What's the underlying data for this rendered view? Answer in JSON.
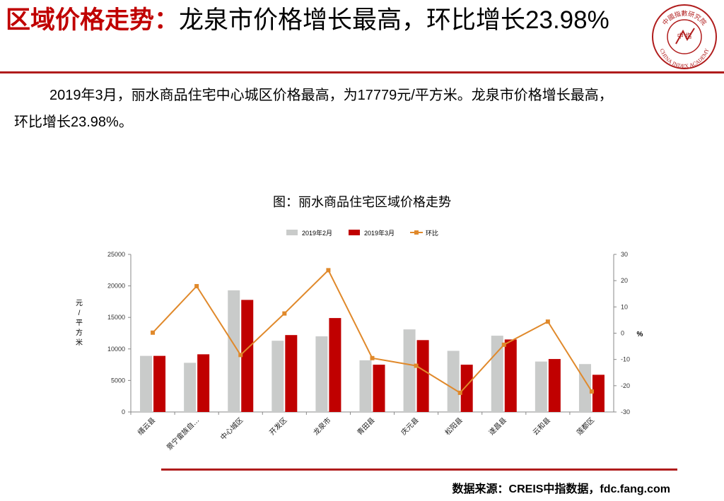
{
  "header": {
    "title_red": "区域价格走势：",
    "title_black": "龙泉市价格增长最高，环比增长23.98%"
  },
  "logo": {
    "text_cn": "中國指數研究院",
    "text_en": "CHINA INDEX ACADEMY",
    "center": "中 指",
    "color": "#b01c1c"
  },
  "description": {
    "line1": "2019年3月，丽水商品住宅中心城区价格最高，为17779元/平方米。龙泉市价格增长最高，",
    "line2": "环比增长23.98%。"
  },
  "footer": {
    "source": "数据来源：CREIS中指数据，fdc.fang.com"
  },
  "chart_data": {
    "type": "bar+line",
    "title": "图：丽水商品住宅区域价格走势",
    "categories": [
      "缙云县",
      "景宁畲族自…",
      "中心城区",
      "开发区",
      "龙泉市",
      "青田县",
      "庆元县",
      "松阳县",
      "遂昌县",
      "云和县",
      "莲都区"
    ],
    "series": [
      {
        "name": "2019年2月",
        "type": "bar",
        "axis": "left",
        "color": "#c9cbca",
        "values": [
          8900,
          7800,
          19300,
          11300,
          12000,
          8200,
          13100,
          9700,
          12100,
          8000,
          7600
        ]
      },
      {
        "name": "2019年3月",
        "type": "bar",
        "axis": "left",
        "color": "#c00000",
        "values": [
          8900,
          9150,
          17779,
          12200,
          14900,
          7500,
          11400,
          7500,
          11500,
          8400,
          5900
        ]
      },
      {
        "name": "环比",
        "type": "line",
        "axis": "right",
        "color": "#e0892b",
        "values": [
          0.2,
          17.9,
          -8.3,
          7.5,
          23.98,
          -9.5,
          -12.4,
          -22.7,
          -4.4,
          4.4,
          -22.2
        ]
      }
    ],
    "ylabel": "元/平方米",
    "y2label": "%",
    "ylim": [
      0,
      25000
    ],
    "yticks": [
      0,
      5000,
      10000,
      15000,
      20000,
      25000
    ],
    "y2lim": [
      -30,
      30
    ],
    "y2ticks": [
      -30,
      -20,
      -10,
      0,
      10,
      20,
      30
    ],
    "legend_position": "top",
    "grid": false
  }
}
